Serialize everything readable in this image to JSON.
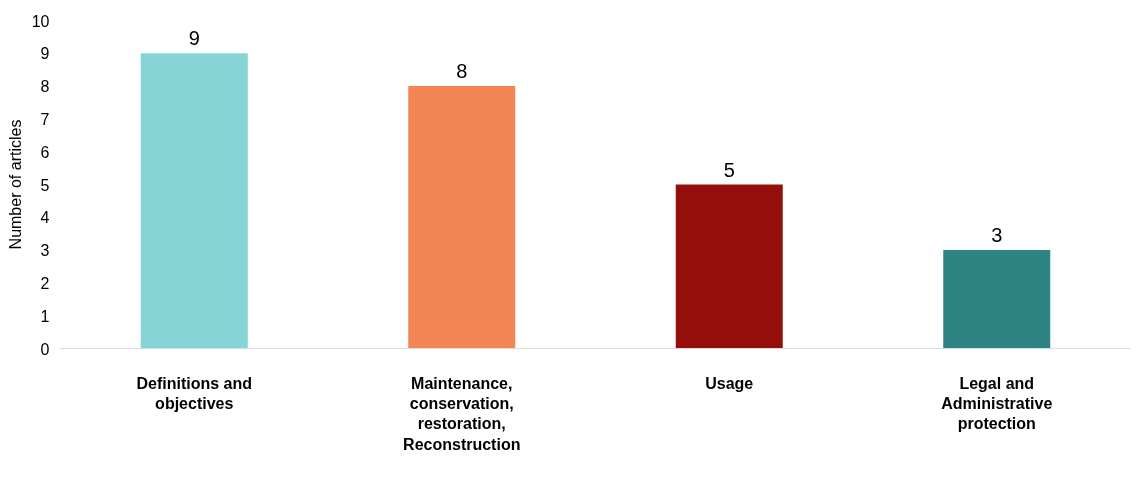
{
  "chart_data": {
    "type": "bar",
    "ylabel": "Number of articles",
    "categories": [
      "Definitions and\nobjectives",
      "Maintenance,\nconservation,\nrestoration,\nReconstruction",
      "Usage",
      "Legal and\nAdministrative\nprotection"
    ],
    "values": [
      9,
      8,
      5,
      3
    ],
    "colors": [
      "#86d4d6",
      "#f38454",
      "#940e0b",
      "#2e8383"
    ],
    "ylim": [
      0,
      10
    ],
    "yticks": [
      0,
      1,
      2,
      3,
      4,
      5,
      6,
      7,
      8,
      9,
      10
    ],
    "data_labels": true,
    "grid": false
  }
}
